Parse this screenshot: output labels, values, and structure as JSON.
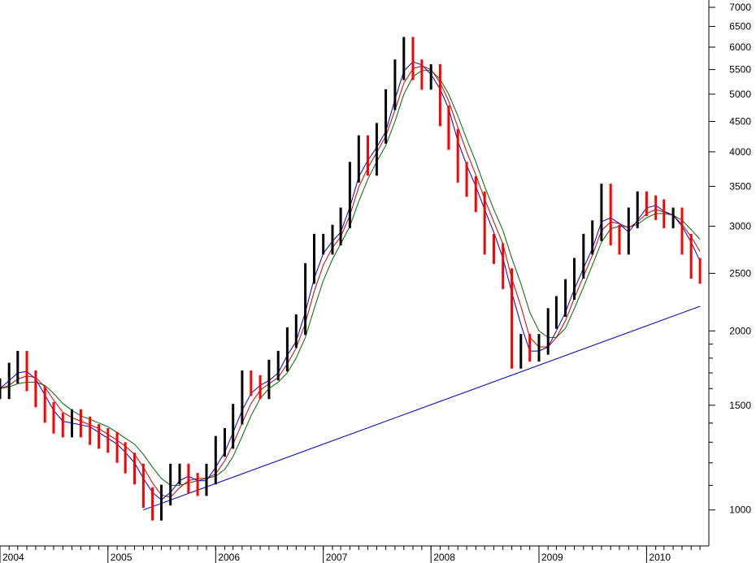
{
  "chart_data": {
    "type": "candlestick",
    "title": "",
    "xlabel": "",
    "ylabel": "",
    "y_scale": "log",
    "ylim": [
      870,
      7200
    ],
    "xlim": [
      "2004-01-01",
      "2010-07-31"
    ],
    "y_ticks": [
      1000,
      1500,
      2000,
      2500,
      3000,
      3500,
      4000,
      4500,
      5000,
      5500,
      6000,
      6500,
      7000
    ],
    "y_tick_labels": [
      "1000",
      "1500",
      "2000",
      "2500",
      "3000",
      "3500",
      "4000",
      "4500",
      "5000",
      "5500",
      "6000",
      "6500",
      "7000"
    ],
    "y_minor_ticks": [
      1100,
      1200,
      1300,
      1400,
      1600,
      1700,
      1800,
      1900
    ],
    "x_ticks": [
      "2004-01-01",
      "2005-01-01",
      "2006-01-01",
      "2007-01-01",
      "2008-01-01",
      "2009-01-01",
      "2010-01-01"
    ],
    "x_tick_labels": [
      "2004",
      "2005",
      "2006",
      "2007",
      "2008",
      "2009",
      "2010"
    ],
    "grid": false,
    "colors": {
      "up_candle": "#000000",
      "down_candle": "#ff0000",
      "ma_short": "#0000cc",
      "ma_mid": "#cc0000",
      "ma_long": "#006600",
      "trendline": "#0000cc"
    },
    "price_series": {
      "name": "",
      "dates": [
        "2004-01-01",
        "2004-02-01",
        "2004-03-01",
        "2004-04-01",
        "2004-05-01",
        "2004-06-01",
        "2004-07-01",
        "2004-08-01",
        "2004-09-01",
        "2004-10-01",
        "2004-11-01",
        "2004-12-01",
        "2005-01-01",
        "2005-02-01",
        "2005-03-01",
        "2005-04-01",
        "2005-05-01",
        "2005-06-01",
        "2005-07-01",
        "2005-08-01",
        "2005-09-01",
        "2005-10-01",
        "2005-11-01",
        "2005-12-01",
        "2006-01-01",
        "2006-02-01",
        "2006-03-01",
        "2006-04-01",
        "2006-05-01",
        "2006-06-01",
        "2006-07-01",
        "2006-08-01",
        "2006-09-01",
        "2006-10-01",
        "2006-11-01",
        "2006-12-01",
        "2007-01-01",
        "2007-02-01",
        "2007-03-01",
        "2007-04-01",
        "2007-05-01",
        "2007-06-01",
        "2007-07-01",
        "2007-08-01",
        "2007-09-01",
        "2007-10-01",
        "2007-11-01",
        "2007-12-01",
        "2008-01-01",
        "2008-02-01",
        "2008-03-01",
        "2008-04-01",
        "2008-05-01",
        "2008-06-01",
        "2008-07-01",
        "2008-08-01",
        "2008-09-01",
        "2008-10-01",
        "2008-11-01",
        "2008-12-01",
        "2009-01-01",
        "2009-02-01",
        "2009-03-01",
        "2009-04-01",
        "2009-05-01",
        "2009-06-01",
        "2009-07-01",
        "2009-08-01",
        "2009-09-01",
        "2009-10-01",
        "2009-11-01",
        "2009-12-01",
        "2010-01-01",
        "2010-02-01",
        "2010-03-01",
        "2010-04-01",
        "2010-05-01",
        "2010-06-01",
        "2010-07-01"
      ],
      "close": [
        1600,
        1700,
        1780,
        1650,
        1550,
        1460,
        1400,
        1380,
        1420,
        1380,
        1340,
        1320,
        1300,
        1250,
        1200,
        1150,
        1050,
        1000,
        1060,
        1150,
        1150,
        1110,
        1100,
        1150,
        1280,
        1320,
        1450,
        1650,
        1620,
        1600,
        1720,
        1780,
        1950,
        2050,
        2500,
        2800,
        2800,
        2900,
        3100,
        3700,
        4100,
        3800,
        4300,
        4900,
        5500,
        6000,
        5500,
        5300,
        5400,
        4600,
        4200,
        3700,
        3500,
        3300,
        2800,
        2700,
        2450,
        1800,
        1900,
        1850,
        1900,
        2100,
        2200,
        2350,
        2550,
        2800,
        2950,
        3400,
        2900,
        2800,
        3100,
        3300,
        3250,
        3200,
        3100,
        3100,
        2800,
        2550,
        2500
      ]
    },
    "ma_short": {
      "name": "",
      "values": [
        1600,
        1650,
        1700,
        1710,
        1660,
        1560,
        1470,
        1410,
        1400,
        1390,
        1380,
        1350,
        1320,
        1290,
        1250,
        1200,
        1130,
        1070,
        1040,
        1070,
        1120,
        1140,
        1120,
        1120,
        1180,
        1250,
        1350,
        1470,
        1570,
        1620,
        1650,
        1700,
        1820,
        1920,
        2150,
        2450,
        2700,
        2830,
        2930,
        3230,
        3630,
        3870,
        4070,
        4330,
        4900,
        5470,
        5670,
        5600,
        5400,
        5100,
        4730,
        4170,
        3800,
        3500,
        3200,
        2930,
        2650,
        2320,
        2050,
        1850,
        1850,
        1880,
        2000,
        2150,
        2350,
        2550,
        2750,
        3050,
        3100,
        3030,
        2930,
        3070,
        3220,
        3250,
        3180,
        3130,
        3000,
        2820,
        2620
      ]
    },
    "ma_mid": {
      "name": "",
      "values": [
        1600,
        1620,
        1660,
        1680,
        1670,
        1610,
        1530,
        1460,
        1430,
        1410,
        1390,
        1370,
        1340,
        1310,
        1280,
        1240,
        1180,
        1110,
        1060,
        1050,
        1090,
        1120,
        1130,
        1130,
        1150,
        1210,
        1290,
        1400,
        1510,
        1590,
        1630,
        1670,
        1760,
        1870,
        2060,
        2330,
        2580,
        2760,
        2880,
        3130,
        3490,
        3760,
        3990,
        4250,
        4700,
        5220,
        5520,
        5580,
        5500,
        5230,
        4870,
        4400,
        4000,
        3660,
        3330,
        3050,
        2800,
        2450,
        2200,
        1950,
        1880,
        1880,
        1950,
        2080,
        2270,
        2470,
        2680,
        2950,
        3050,
        3030,
        2980,
        3050,
        3150,
        3200,
        3170,
        3130,
        3020,
        2880,
        2720
      ]
    },
    "ma_long": {
      "name": "",
      "values": [
        1600,
        1610,
        1630,
        1640,
        1640,
        1620,
        1570,
        1510,
        1470,
        1440,
        1420,
        1400,
        1380,
        1350,
        1320,
        1290,
        1240,
        1180,
        1130,
        1100,
        1100,
        1110,
        1120,
        1130,
        1140,
        1170,
        1230,
        1330,
        1440,
        1540,
        1600,
        1640,
        1700,
        1800,
        1950,
        2180,
        2430,
        2640,
        2800,
        3000,
        3300,
        3600,
        3850,
        4100,
        4500,
        5000,
        5350,
        5480,
        5480,
        5300,
        5000,
        4600,
        4200,
        3850,
        3500,
        3200,
        2950,
        2650,
        2400,
        2150,
        2000,
        1950,
        1950,
        2020,
        2180,
        2370,
        2580,
        2820,
        2970,
        3000,
        2990,
        3020,
        3100,
        3150,
        3150,
        3130,
        3070,
        2960,
        2850
      ]
    },
    "trendline": {
      "from": {
        "date": "2005-05-01",
        "value": 1000
      },
      "to": {
        "date": "2010-07-01",
        "value": 2200
      }
    }
  }
}
